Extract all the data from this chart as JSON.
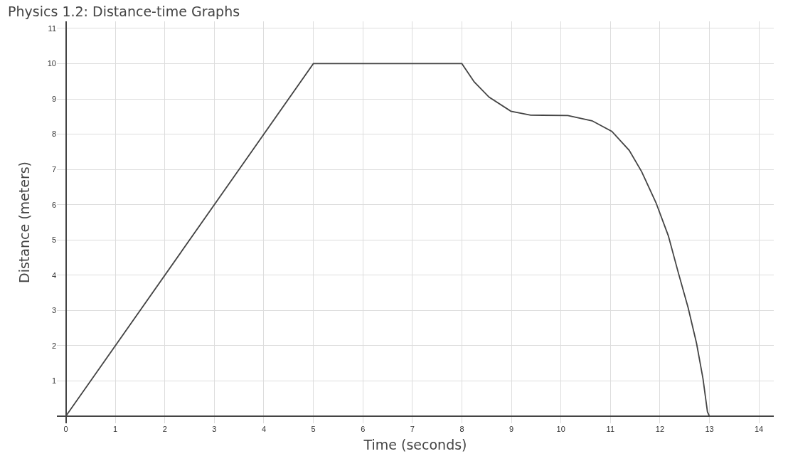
{
  "chart_data": {
    "type": "line",
    "title": "Physics 1.2: Distance-time Graphs",
    "xlabel": "Time (seconds)",
    "ylabel": "Distance (meters)",
    "series": [
      {
        "color": "#444444",
        "x": [
          0,
          5,
          8,
          8.25,
          8.55,
          8.99,
          9.39,
          10.14,
          10.63,
          11.03,
          11.38,
          11.63,
          11.92,
          12.17,
          12.37,
          12.57,
          12.74,
          12.87,
          12.96,
          13
        ],
        "values": [
          0,
          10,
          10,
          9.48,
          9.05,
          8.65,
          8.54,
          8.53,
          8.38,
          8.08,
          7.54,
          6.94,
          6.06,
          5.12,
          4.08,
          3.08,
          2.07,
          1.07,
          0.13,
          0
        ]
      }
    ],
    "xlim": [
      -0.18,
      14.3
    ],
    "xticks": [
      0,
      1,
      2,
      3,
      4,
      5,
      6,
      7,
      8,
      9,
      10,
      11,
      12,
      13,
      14
    ],
    "ylim": [
      -0.2,
      11.2
    ],
    "yticks": [
      1,
      2,
      3,
      4,
      5,
      6,
      7,
      8,
      9,
      10,
      11
    ],
    "grid": true,
    "marker": "none",
    "line_style": "solid",
    "legend": false
  }
}
